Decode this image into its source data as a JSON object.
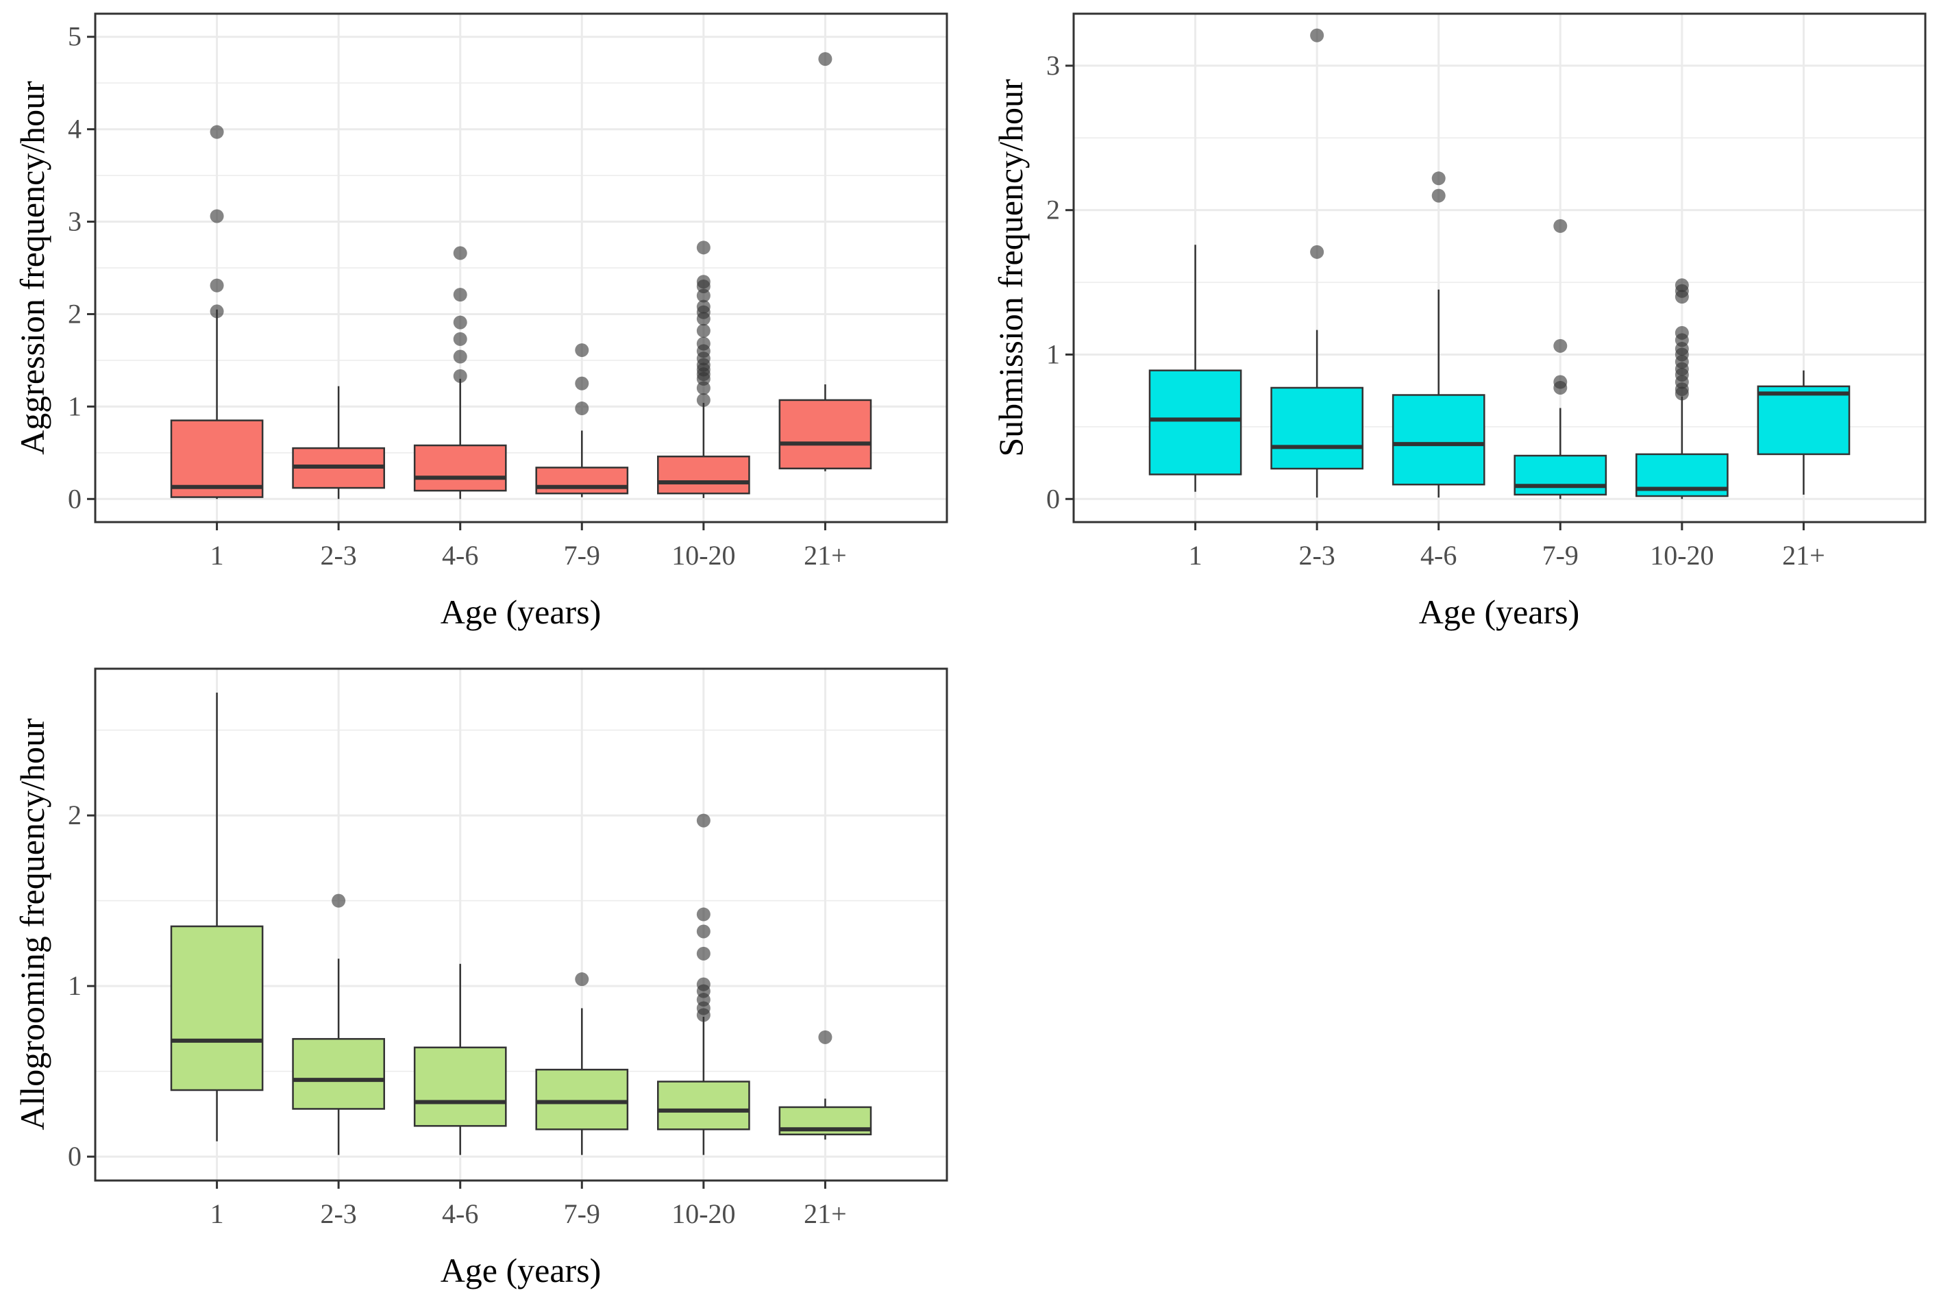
{
  "chart_data": [
    {
      "type": "boxplot",
      "name": "aggression",
      "xlabel": "Age (years)",
      "ylabel": "Aggression frequency/hour",
      "categories": [
        "1",
        "2-3",
        "4-6",
        "7-9",
        "10-20",
        "21+"
      ],
      "ylim": [
        -0.25,
        5.25
      ],
      "yticks": [
        0,
        1,
        2,
        3,
        4,
        5
      ],
      "y_tick_labels": [
        "0",
        "1",
        "2",
        "3",
        "4",
        "5"
      ],
      "fill_color": "#f8766d",
      "grid": true,
      "boxes": [
        {
          "category": "1",
          "whisker_low": 0.0,
          "q1": 0.02,
          "median": 0.13,
          "q3": 0.85,
          "whisker_high": 2.05,
          "outliers": [
            2.03,
            2.31,
            3.06,
            3.97
          ]
        },
        {
          "category": "2-3",
          "whisker_low": 0.0,
          "q1": 0.12,
          "median": 0.35,
          "q3": 0.55,
          "whisker_high": 1.22,
          "outliers": []
        },
        {
          "category": "4-6",
          "whisker_low": 0.0,
          "q1": 0.09,
          "median": 0.23,
          "q3": 0.58,
          "whisker_high": 1.3,
          "outliers": [
            1.33,
            1.54,
            1.73,
            1.91,
            2.21,
            2.66
          ]
        },
        {
          "category": "7-9",
          "whisker_low": 0.02,
          "q1": 0.06,
          "median": 0.13,
          "q3": 0.34,
          "whisker_high": 0.74,
          "outliers": [
            0.98,
            1.25,
            1.61
          ]
        },
        {
          "category": "10-20",
          "whisker_low": 0.01,
          "q1": 0.06,
          "median": 0.18,
          "q3": 0.46,
          "whisker_high": 1.04,
          "outliers": [
            1.07,
            1.2,
            1.3,
            1.35,
            1.4,
            1.45,
            1.52,
            1.6,
            1.68,
            1.82,
            1.95,
            2.02,
            2.08,
            2.2,
            2.3,
            2.35,
            2.72
          ]
        },
        {
          "category": "21+",
          "whisker_low": 0.3,
          "q1": 0.33,
          "median": 0.6,
          "q3": 1.07,
          "whisker_high": 1.24,
          "outliers": [
            4.76
          ]
        }
      ]
    },
    {
      "type": "boxplot",
      "name": "submission",
      "xlabel": "Age (years)",
      "ylabel": "Submission frequency/hour",
      "categories": [
        "1",
        "2-3",
        "4-6",
        "7-9",
        "10-20",
        "21+"
      ],
      "ylim": [
        -0.16,
        3.36
      ],
      "yticks": [
        0,
        1,
        2,
        3
      ],
      "y_tick_labels": [
        "0",
        "1",
        "2",
        "3"
      ],
      "fill_color": "#00e5e5",
      "grid": true,
      "boxes": [
        {
          "category": "1",
          "whisker_low": 0.05,
          "q1": 0.17,
          "median": 0.55,
          "q3": 0.89,
          "whisker_high": 1.76,
          "outliers": []
        },
        {
          "category": "2-3",
          "whisker_low": 0.01,
          "q1": 0.21,
          "median": 0.36,
          "q3": 0.77,
          "whisker_high": 1.17,
          "outliers": [
            1.71,
            3.21
          ]
        },
        {
          "category": "4-6",
          "whisker_low": 0.01,
          "q1": 0.1,
          "median": 0.38,
          "q3": 0.72,
          "whisker_high": 1.45,
          "outliers": [
            2.1,
            2.22
          ]
        },
        {
          "category": "7-9",
          "whisker_low": 0.0,
          "q1": 0.03,
          "median": 0.09,
          "q3": 0.3,
          "whisker_high": 0.63,
          "outliers": [
            0.77,
            0.81,
            1.06,
            1.89
          ]
        },
        {
          "category": "10-20",
          "whisker_low": 0.0,
          "q1": 0.02,
          "median": 0.07,
          "q3": 0.31,
          "whisker_high": 0.71,
          "outliers": [
            0.73,
            0.76,
            0.81,
            0.86,
            0.9,
            0.95,
            1.0,
            1.04,
            1.1,
            1.15,
            1.4,
            1.44,
            1.48
          ]
        },
        {
          "category": "21+",
          "whisker_low": 0.03,
          "q1": 0.31,
          "median": 0.73,
          "q3": 0.78,
          "whisker_high": 0.89,
          "outliers": []
        }
      ]
    },
    {
      "type": "boxplot",
      "name": "allogrooming",
      "xlabel": "Age (years)",
      "ylabel": "Allogrooming frequency/hour",
      "categories": [
        "1",
        "2-3",
        "4-6",
        "7-9",
        "10-20",
        "21+"
      ],
      "ylim": [
        -0.14,
        2.86
      ],
      "yticks": [
        0,
        1,
        2
      ],
      "y_tick_labels": [
        "0",
        "1",
        "2"
      ],
      "fill_color": "#b8e186",
      "grid": true,
      "boxes": [
        {
          "category": "1",
          "whisker_low": 0.09,
          "q1": 0.39,
          "median": 0.68,
          "q3": 1.35,
          "whisker_high": 2.72,
          "outliers": []
        },
        {
          "category": "2-3",
          "whisker_low": 0.01,
          "q1": 0.28,
          "median": 0.45,
          "q3": 0.69,
          "whisker_high": 1.16,
          "outliers": [
            1.5
          ]
        },
        {
          "category": "4-6",
          "whisker_low": 0.01,
          "q1": 0.18,
          "median": 0.32,
          "q3": 0.64,
          "whisker_high": 1.13,
          "outliers": []
        },
        {
          "category": "7-9",
          "whisker_low": 0.01,
          "q1": 0.16,
          "median": 0.32,
          "q3": 0.51,
          "whisker_high": 0.87,
          "outliers": [
            1.04
          ]
        },
        {
          "category": "10-20",
          "whisker_low": 0.01,
          "q1": 0.16,
          "median": 0.27,
          "q3": 0.44,
          "whisker_high": 0.82,
          "outliers": [
            0.83,
            0.87,
            0.92,
            0.97,
            1.01,
            1.19,
            1.32,
            1.42,
            1.97
          ]
        },
        {
          "category": "21+",
          "whisker_low": 0.1,
          "q1": 0.13,
          "median": 0.16,
          "q3": 0.29,
          "whisker_high": 0.34,
          "outliers": [
            0.7
          ]
        }
      ]
    }
  ]
}
